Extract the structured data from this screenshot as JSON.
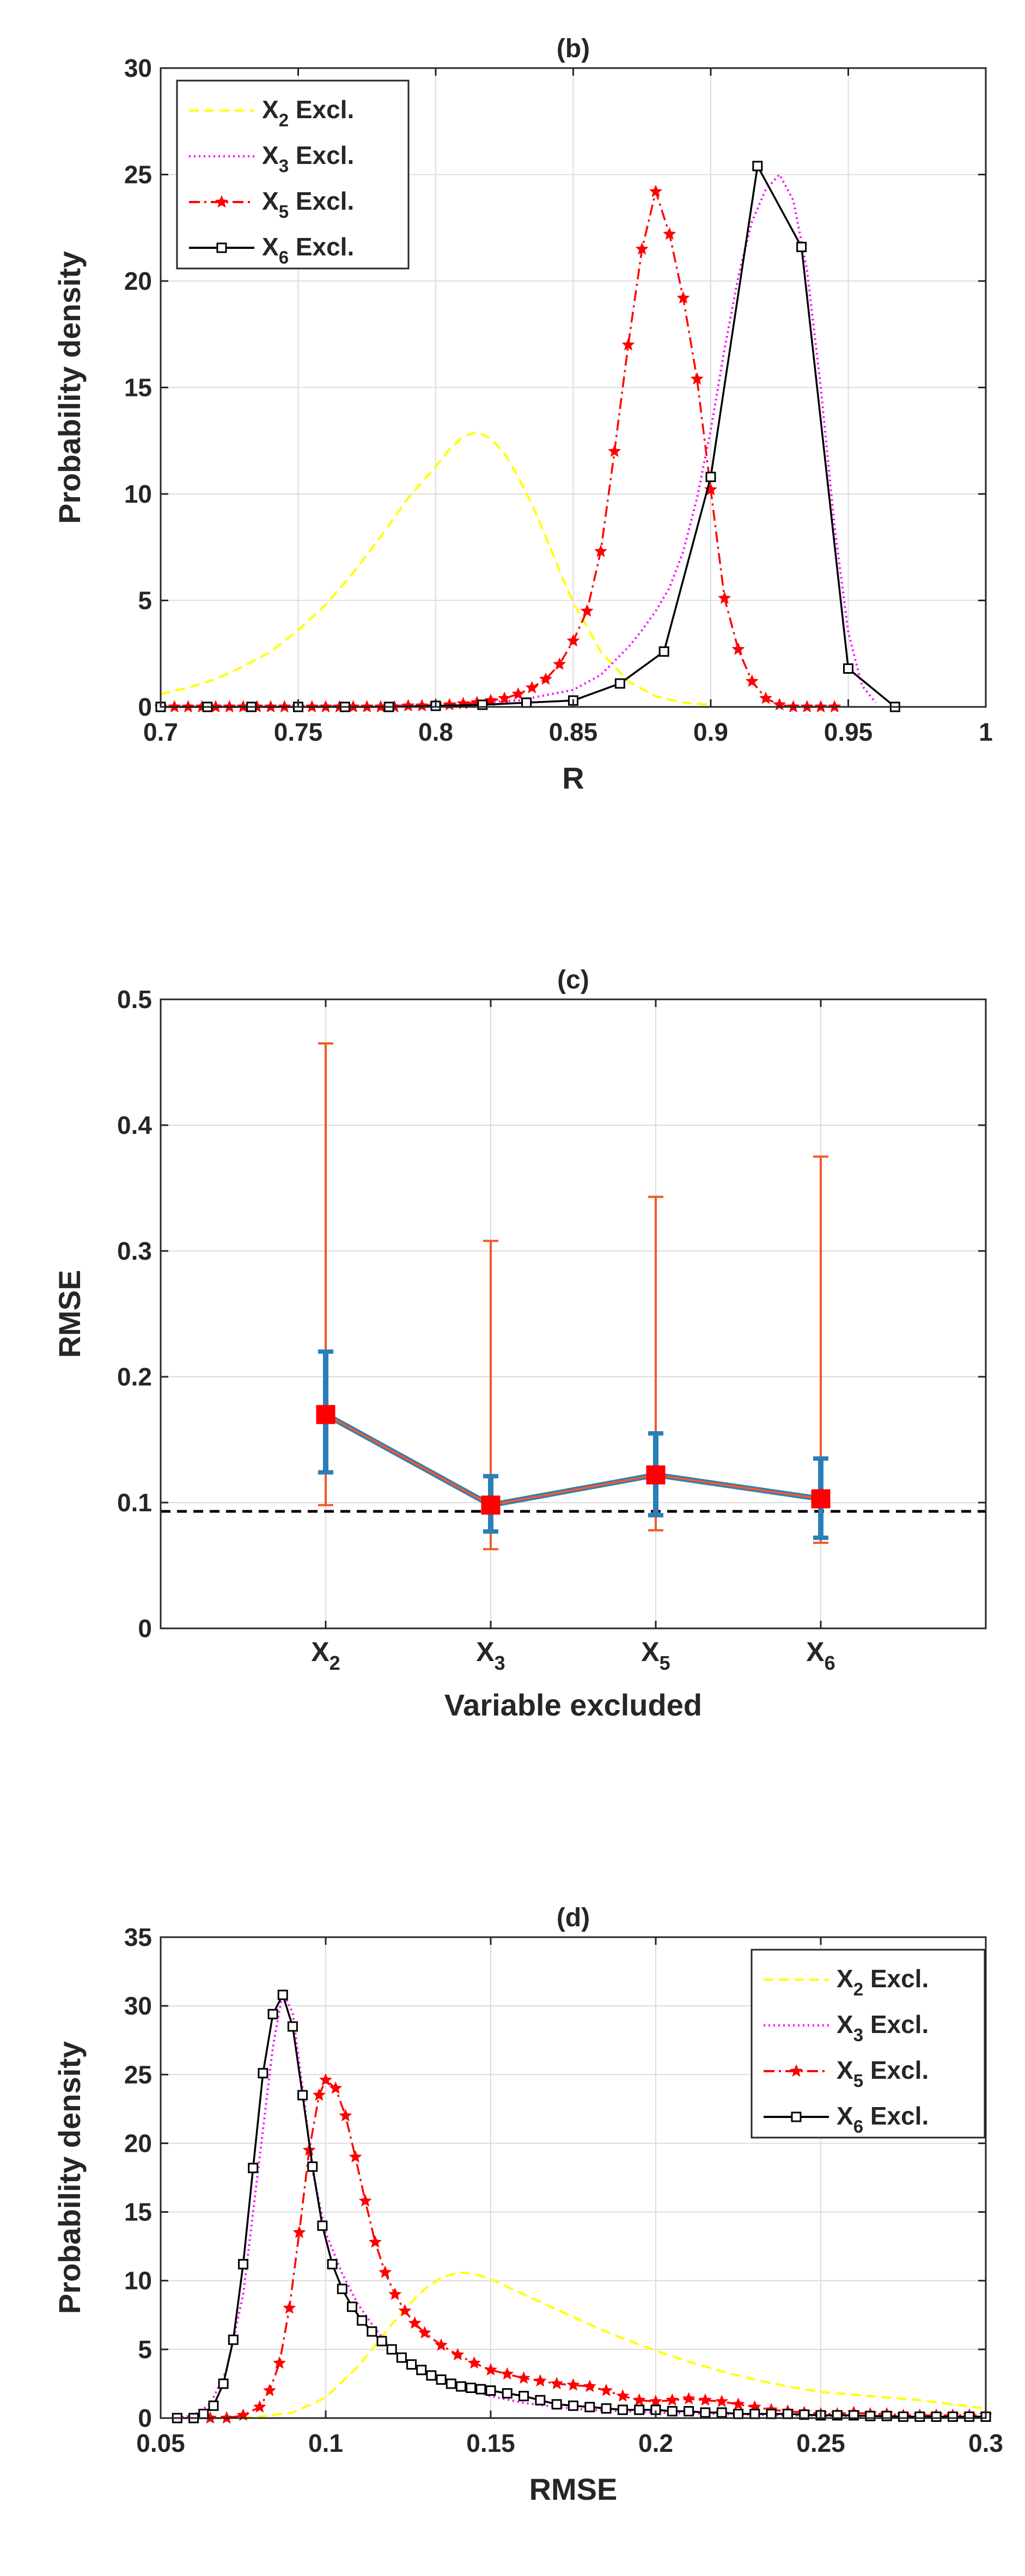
{
  "chart_data": [
    {
      "id": "b",
      "type": "line",
      "title": "(b)",
      "xlabel": "R",
      "ylabel": "Probability density",
      "xlim": [
        0.7,
        1.0
      ],
      "ylim": [
        0,
        30
      ],
      "xticks": [
        0.7,
        0.75,
        0.8,
        0.85,
        0.9,
        0.95,
        1
      ],
      "xtick_labels": [
        "0.7",
        "0.75",
        "0.8",
        "0.85",
        "0.9",
        "0.95",
        "1"
      ],
      "yticks": [
        0,
        5,
        10,
        15,
        20,
        25,
        30
      ],
      "ytick_labels": [
        "0",
        "5",
        "10",
        "15",
        "20",
        "25",
        "30"
      ],
      "grid": true,
      "legend_position": "top-left",
      "series": [
        {
          "name": "X2 Excl.",
          "label_base": "X",
          "label_sub": "2",
          "label_rest": " Excl.",
          "color": "#ffff00",
          "style": "dashed",
          "marker": "none",
          "x": [
            0.7,
            0.71,
            0.72,
            0.73,
            0.74,
            0.75,
            0.76,
            0.77,
            0.78,
            0.79,
            0.8,
            0.805,
            0.81,
            0.815,
            0.82,
            0.825,
            0.83,
            0.835,
            0.84,
            0.845,
            0.85,
            0.86,
            0.87,
            0.88,
            0.89,
            0.9
          ],
          "y": [
            0.6,
            0.9,
            1.3,
            1.9,
            2.6,
            3.6,
            4.8,
            6.3,
            8.0,
            9.8,
            11.3,
            12.1,
            12.7,
            12.9,
            12.6,
            11.9,
            10.8,
            9.5,
            8.0,
            6.4,
            4.9,
            2.6,
            1.2,
            0.5,
            0.2,
            0.1
          ]
        },
        {
          "name": "X3 Excl.",
          "label_base": "X",
          "label_sub": "3",
          "label_rest": " Excl.",
          "color": "#ff00ff",
          "style": "dotted",
          "marker": "none",
          "x": [
            0.7,
            0.75,
            0.8,
            0.83,
            0.85,
            0.86,
            0.87,
            0.875,
            0.88,
            0.885,
            0.89,
            0.895,
            0.9,
            0.905,
            0.91,
            0.915,
            0.92,
            0.925,
            0.93,
            0.935,
            0.94,
            0.945,
            0.95,
            0.955,
            0.96
          ],
          "y": [
            0,
            0,
            0.1,
            0.3,
            0.8,
            1.5,
            2.8,
            3.6,
            4.5,
            5.6,
            7.3,
            9.8,
            13.0,
            16.8,
            20.2,
            22.8,
            24.3,
            25.0,
            23.8,
            20.5,
            15.0,
            8.5,
            3.5,
            1.0,
            0.2
          ]
        },
        {
          "name": "X5 Excl.",
          "label_base": "X",
          "label_sub": "5",
          "label_rest": " Excl.",
          "color": "#ff0000",
          "style": "dashdot",
          "marker": "star",
          "x": [
            0.7,
            0.705,
            0.71,
            0.715,
            0.72,
            0.725,
            0.73,
            0.735,
            0.74,
            0.745,
            0.75,
            0.755,
            0.76,
            0.765,
            0.77,
            0.775,
            0.78,
            0.785,
            0.79,
            0.795,
            0.8,
            0.805,
            0.81,
            0.815,
            0.82,
            0.825,
            0.83,
            0.835,
            0.84,
            0.845,
            0.85,
            0.855,
            0.86,
            0.865,
            0.87,
            0.875,
            0.88,
            0.885,
            0.89,
            0.895,
            0.9,
            0.905,
            0.91,
            0.915,
            0.92,
            0.925,
            0.93,
            0.935,
            0.94,
            0.945
          ],
          "y": [
            0,
            0,
            0,
            0,
            0,
            0,
            0,
            0,
            0,
            0,
            0,
            0,
            0,
            0,
            0,
            0,
            0,
            0,
            0.05,
            0.05,
            0.1,
            0.1,
            0.15,
            0.2,
            0.3,
            0.4,
            0.6,
            0.9,
            1.3,
            2.0,
            3.1,
            4.5,
            7.3,
            12.0,
            17.0,
            21.5,
            24.2,
            22.2,
            19.2,
            15.4,
            10.2,
            5.1,
            2.7,
            1.2,
            0.4,
            0.1,
            0,
            0,
            0,
            0
          ],
          "x_override_start": 0.7
        },
        {
          "name": "X6 Excl.",
          "label_base": "X",
          "label_sub": "6",
          "label_rest": " Excl.",
          "color": "#000000",
          "style": "solid",
          "marker": "square",
          "x": [
            0.7,
            0.717,
            0.733,
            0.75,
            0.767,
            0.783,
            0.8,
            0.817,
            0.833,
            0.85,
            0.867,
            0.883,
            0.9,
            0.917,
            0.933,
            0.95,
            0.967
          ],
          "y": [
            0,
            0,
            0,
            0,
            0,
            0,
            0.05,
            0.1,
            0.2,
            0.3,
            1.1,
            2.6,
            10.8,
            25.4,
            21.6,
            1.8,
            0
          ]
        }
      ]
    },
    {
      "id": "c",
      "type": "errorbar",
      "title": "(c)",
      "xlabel": "Variable excluded",
      "ylabel": "RMSE",
      "ylim": [
        0,
        0.5
      ],
      "yticks": [
        0,
        0.1,
        0.2,
        0.3,
        0.4,
        0.5
      ],
      "ytick_labels": [
        "0",
        "0.1",
        "0.2",
        "0.3",
        "0.4",
        "0.5"
      ],
      "xlim": [
        0,
        5
      ],
      "grid": true,
      "categories": [
        {
          "base": "X",
          "sub": "2"
        },
        {
          "base": "X",
          "sub": "3"
        },
        {
          "base": "X",
          "sub": "5"
        },
        {
          "base": "X",
          "sub": "6"
        }
      ],
      "median": [
        0.17,
        0.098,
        0.122,
        0.103
      ],
      "iqr_low": [
        0.124,
        0.077,
        0.09,
        0.072
      ],
      "iqr_high": [
        0.22,
        0.121,
        0.155,
        0.135
      ],
      "range_low": [
        0.098,
        0.063,
        0.078,
        0.068
      ],
      "range_high": [
        0.465,
        0.308,
        0.343,
        0.375
      ],
      "reference_line": 0.093,
      "colors": {
        "range": "#f05a28",
        "iqr": "#2a7fb8",
        "median": "#ff0000",
        "line": "#2a7fb8",
        "reference": "#000000"
      }
    },
    {
      "id": "d",
      "type": "line",
      "title": "(d)",
      "xlabel": "RMSE",
      "ylabel": "Probability density",
      "xlim": [
        0.05,
        0.3
      ],
      "ylim": [
        0,
        35
      ],
      "xticks": [
        0.05,
        0.1,
        0.15,
        0.2,
        0.25,
        0.3
      ],
      "xtick_labels": [
        "0.05",
        "0.1",
        "0.15",
        "0.2",
        "0.25",
        "0.3"
      ],
      "yticks": [
        0,
        5,
        10,
        15,
        20,
        25,
        30,
        35
      ],
      "ytick_labels": [
        "0",
        "5",
        "10",
        "15",
        "20",
        "25",
        "30",
        "35"
      ],
      "grid": true,
      "legend_position": "top-right",
      "series": [
        {
          "name": "X2 Excl.",
          "label_base": "X",
          "label_sub": "2",
          "label_rest": " Excl.",
          "color": "#ffff00",
          "style": "dashed",
          "marker": "none",
          "x": [
            0.07,
            0.08,
            0.09,
            0.1,
            0.11,
            0.12,
            0.125,
            0.13,
            0.135,
            0.14,
            0.145,
            0.15,
            0.16,
            0.17,
            0.18,
            0.19,
            0.2,
            0.21,
            0.22,
            0.23,
            0.24,
            0.25,
            0.26,
            0.27,
            0.28,
            0.29,
            0.3
          ],
          "y": [
            0,
            0.1,
            0.4,
            1.5,
            3.8,
            6.8,
            8.2,
            9.4,
            10.2,
            10.6,
            10.5,
            10.1,
            9.0,
            7.9,
            6.8,
            5.8,
            4.9,
            4.1,
            3.4,
            2.8,
            2.3,
            1.9,
            1.7,
            1.5,
            1.3,
            1.0,
            0.7
          ]
        },
        {
          "name": "X3 Excl.",
          "label_base": "X",
          "label_sub": "3",
          "label_rest": " Excl.",
          "color": "#ff00ff",
          "style": "dotted",
          "marker": "none",
          "x": [
            0.055,
            0.06,
            0.065,
            0.07,
            0.075,
            0.078,
            0.081,
            0.084,
            0.087,
            0.09,
            0.093,
            0.096,
            0.1,
            0.105,
            0.11,
            0.115,
            0.12,
            0.13,
            0.14,
            0.15,
            0.16,
            0.17,
            0.18,
            0.19,
            0.2,
            0.22,
            0.24,
            0.26,
            0.28,
            0.3
          ],
          "y": [
            0,
            0.2,
            1.0,
            3.5,
            9.0,
            15.0,
            21.0,
            27.0,
            31.0,
            29.5,
            24.0,
            18.0,
            13.5,
            10.5,
            8.2,
            6.5,
            5.0,
            3.2,
            2.3,
            1.6,
            1.1,
            0.8,
            0.6,
            0.5,
            0.4,
            0.3,
            0.2,
            0.15,
            0.1,
            0.1
          ]
        },
        {
          "name": "X5 Excl.",
          "label_base": "X",
          "label_sub": "5",
          "label_rest": " Excl.",
          "color": "#ff0000",
          "style": "dashdot",
          "marker": "star",
          "x": [
            0.065,
            0.07,
            0.075,
            0.08,
            0.083,
            0.086,
            0.089,
            0.092,
            0.095,
            0.098,
            0.1,
            0.103,
            0.106,
            0.109,
            0.112,
            0.115,
            0.118,
            0.121,
            0.124,
            0.127,
            0.13,
            0.135,
            0.14,
            0.145,
            0.15,
            0.155,
            0.16,
            0.165,
            0.17,
            0.175,
            0.18,
            0.185,
            0.19,
            0.195,
            0.2,
            0.205,
            0.21,
            0.215,
            0.22,
            0.225,
            0.23,
            0.235,
            0.24,
            0.245,
            0.25,
            0.255,
            0.26,
            0.265,
            0.27,
            0.275,
            0.28,
            0.285,
            0.29,
            0.295,
            0.3
          ],
          "y": [
            0,
            0,
            0.2,
            0.8,
            2.0,
            4.0,
            8.0,
            13.5,
            19.5,
            23.5,
            24.6,
            24.0,
            22.0,
            19.0,
            15.8,
            12.8,
            10.6,
            9.0,
            7.8,
            6.9,
            6.2,
            5.3,
            4.6,
            4.0,
            3.5,
            3.2,
            2.9,
            2.7,
            2.5,
            2.4,
            2.3,
            2.0,
            1.6,
            1.3,
            1.2,
            1.3,
            1.4,
            1.3,
            1.2,
            1.0,
            0.8,
            0.6,
            0.5,
            0.4,
            0.3,
            0.3,
            0.4,
            0.3,
            0.3,
            0.2,
            0.2,
            0.2,
            0.2,
            0.2,
            0.2
          ]
        },
        {
          "name": "X6 Excl.",
          "label_base": "X",
          "label_sub": "6",
          "label_rest": " Excl.",
          "color": "#000000",
          "style": "solid",
          "marker": "square",
          "x": [
            0.055,
            0.06,
            0.063,
            0.066,
            0.069,
            0.072,
            0.075,
            0.078,
            0.081,
            0.084,
            0.087,
            0.09,
            0.093,
            0.096,
            0.099,
            0.102,
            0.105,
            0.108,
            0.111,
            0.114,
            0.117,
            0.12,
            0.123,
            0.126,
            0.129,
            0.132,
            0.135,
            0.138,
            0.141,
            0.144,
            0.147,
            0.15,
            0.155,
            0.16,
            0.165,
            0.17,
            0.175,
            0.18,
            0.185,
            0.19,
            0.195,
            0.2,
            0.205,
            0.21,
            0.215,
            0.22,
            0.225,
            0.23,
            0.235,
            0.24,
            0.245,
            0.25,
            0.255,
            0.26,
            0.265,
            0.27,
            0.275,
            0.28,
            0.285,
            0.29,
            0.295,
            0.3
          ],
          "y": [
            0,
            0,
            0.3,
            0.9,
            2.5,
            5.7,
            11.2,
            18.2,
            25.1,
            29.4,
            30.8,
            28.5,
            23.5,
            18.3,
            14.0,
            11.2,
            9.4,
            8.1,
            7.1,
            6.3,
            5.6,
            5.0,
            4.4,
            3.9,
            3.5,
            3.1,
            2.8,
            2.5,
            2.3,
            2.2,
            2.1,
            2.0,
            1.8,
            1.6,
            1.3,
            1.0,
            0.9,
            0.8,
            0.7,
            0.6,
            0.6,
            0.6,
            0.5,
            0.5,
            0.4,
            0.4,
            0.3,
            0.3,
            0.3,
            0.3,
            0.25,
            0.2,
            0.2,
            0.2,
            0.15,
            0.15,
            0.1,
            0.1,
            0.1,
            0.1,
            0.1,
            0.1
          ]
        }
      ]
    }
  ]
}
